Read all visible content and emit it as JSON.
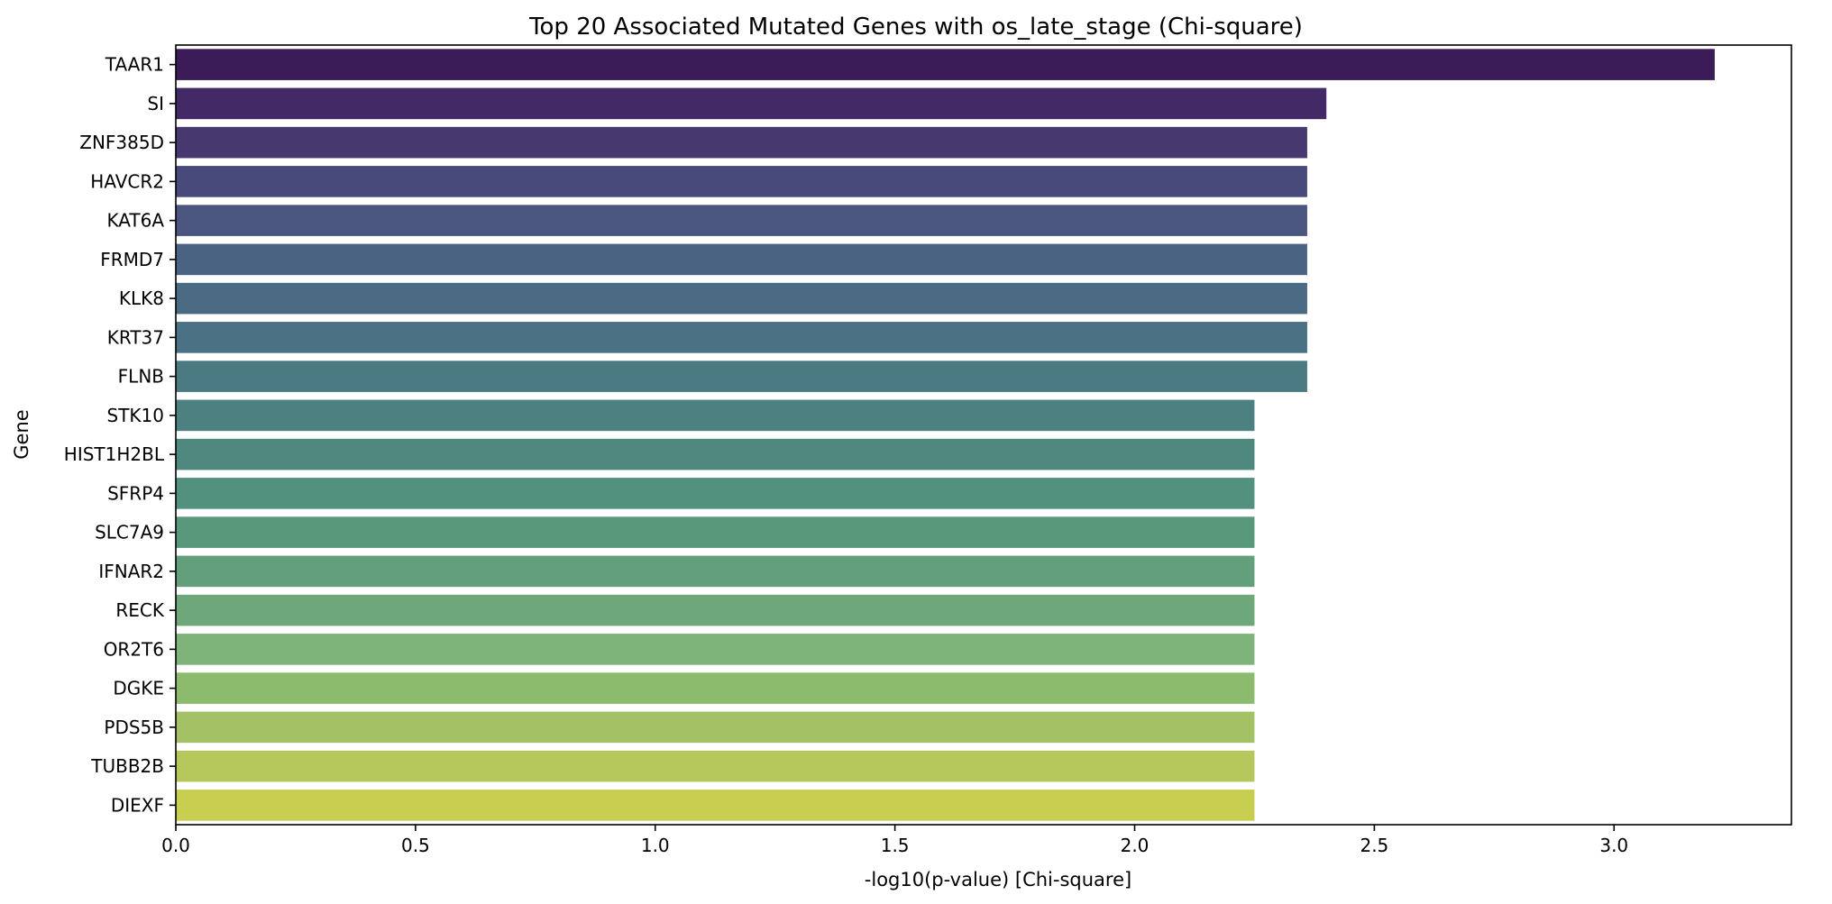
{
  "chart_data": {
    "type": "bar",
    "orientation": "horizontal",
    "title": "Top 20 Associated Mutated Genes with os_late_stage (Chi-square)",
    "xlabel": "-log10(p-value) [Chi-square]",
    "ylabel": "Gene",
    "xlim": [
      0,
      3.37
    ],
    "xticks": [
      0.0,
      0.5,
      1.0,
      1.5,
      2.0,
      2.5,
      3.0
    ],
    "xtick_labels": [
      "0.0",
      "0.5",
      "1.0",
      "1.5",
      "2.0",
      "2.5",
      "3.0"
    ],
    "grid": false,
    "colormap": "viridis",
    "categories": [
      "TAAR1",
      "SI",
      "ZNF385D",
      "HAVCR2",
      "KAT6A",
      "FRMD7",
      "KLK8",
      "KRT37",
      "FLNB",
      "STK10",
      "HIST1H2BL",
      "SFRP4",
      "SLC7A9",
      "IFNAR2",
      "RECK",
      "OR2T6",
      "DGKE",
      "PDS5B",
      "TUBB2B",
      "DIEXF"
    ],
    "values": [
      3.21,
      2.4,
      2.36,
      2.36,
      2.36,
      2.36,
      2.36,
      2.36,
      2.36,
      2.25,
      2.25,
      2.25,
      2.25,
      2.25,
      2.25,
      2.25,
      2.25,
      2.25,
      2.25,
      2.25
    ],
    "colors": [
      "#3b1c58",
      "#432a67",
      "#47396f",
      "#484a7b",
      "#4a5580",
      "#4a6383",
      "#4b6b84",
      "#4a7184",
      "#4b7a82",
      "#4d8181",
      "#4f887e",
      "#53917f",
      "#5a987c",
      "#649f7c",
      "#6ea87a",
      "#7eb47a",
      "#8cbb6e",
      "#a4c265",
      "#b6c85c",
      "#c7ce50"
    ]
  }
}
